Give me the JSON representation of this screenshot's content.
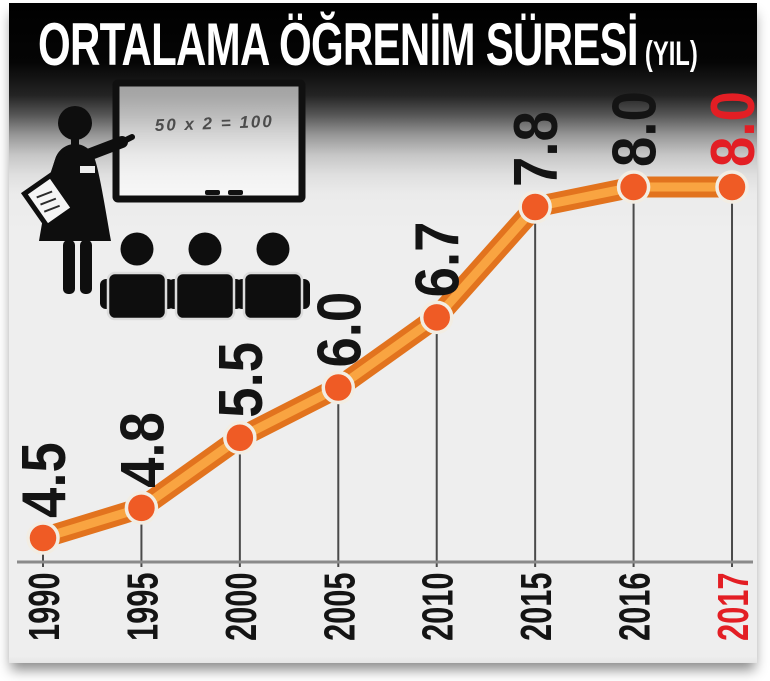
{
  "title": {
    "main": "ORTALAMA ÖĞRENİM SÜRESİ",
    "unit": "(YIL)"
  },
  "illustration": {
    "board_text": "50 x 2 = 100"
  },
  "chart_data": {
    "type": "line",
    "title": "ORTALAMA ÖĞRENİM SÜRESİ (YIL)",
    "categories": [
      "1990",
      "1995",
      "2000",
      "2005",
      "2010",
      "2015",
      "2016",
      "2017"
    ],
    "values": [
      4.5,
      4.8,
      5.5,
      6.0,
      6.7,
      7.8,
      8.0,
      8.0
    ],
    "value_labels": [
      "4.5",
      "4.8",
      "5.5",
      "6.0",
      "6.7",
      "7.8",
      "8.0",
      "8.0"
    ],
    "highlight_index": 7,
    "ylim": [
      4.5,
      8.0
    ],
    "grid": false,
    "legend": false,
    "colors": {
      "line_outer": "#e2731e",
      "line_inner": "#f9a441",
      "point": "#ef5b25",
      "point_ring": "#f2ede3",
      "label": "#141414",
      "highlight": "#e31e24",
      "axis": "#8a8a8a",
      "tick": "#4a4a4a",
      "title_text": "#ffffff"
    }
  }
}
